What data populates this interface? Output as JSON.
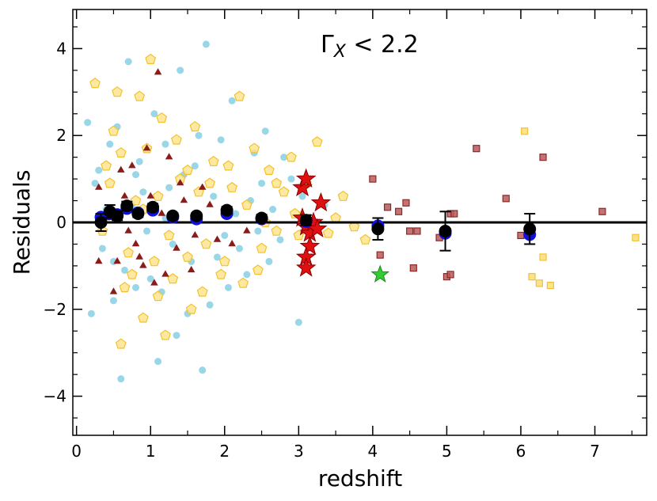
{
  "chart_data": {
    "type": "scatter",
    "title": "",
    "annotation": {
      "base": "Γ",
      "sub": "X",
      "rest": " < 2.2"
    },
    "xlabel": "redshift",
    "ylabel": "Residuals",
    "xlim": [
      -0.05,
      7.7
    ],
    "ylim": [
      -4.9,
      4.9
    ],
    "xticks": [
      0,
      1,
      2,
      3,
      4,
      5,
      6,
      7
    ],
    "yticks": [
      -4,
      -2,
      0,
      2,
      4
    ],
    "ytick_labels": [
      "−4",
      "−2",
      "0",
      "2",
      "4"
    ],
    "reference_line_y": 0,
    "colors": {
      "cyan": "#87cfe4",
      "gold_fill": "#ffe38a",
      "gold_edge": "#f2c12e",
      "darkred": "#8b1a1a",
      "square_fill": "#b85a5a",
      "square_edge": "#8b2a2a",
      "red_star": "#e01010",
      "green_star": "#33cc33",
      "binned_blue": "#1010e0",
      "binned_black": "#000000"
    },
    "series": {
      "cyan_points": [
        [
          0.15,
          2.3
        ],
        [
          0.3,
          1.2
        ],
        [
          0.5,
          -1.8
        ],
        [
          0.7,
          3.7
        ],
        [
          0.8,
          -1.5
        ],
        [
          1.2,
          1.8
        ],
        [
          1.4,
          3.5
        ],
        [
          1.5,
          -2.1
        ],
        [
          1.6,
          1.3
        ],
        [
          1.75,
          4.1
        ],
        [
          1.9,
          -0.8
        ],
        [
          2.1,
          2.8
        ],
        [
          2.3,
          -1.2
        ],
        [
          2.5,
          0.9
        ],
        [
          2.8,
          1.5
        ],
        [
          3.0,
          -2.3
        ],
        [
          1.1,
          -3.2
        ],
        [
          0.6,
          -3.6
        ],
        [
          0.4,
          0.3
        ],
        [
          0.9,
          0.7
        ],
        [
          1.3,
          -0.5
        ],
        [
          1.7,
          -3.4
        ],
        [
          2.0,
          -0.3
        ],
        [
          2.4,
          1.6
        ],
        [
          2.6,
          -0.9
        ],
        [
          0.2,
          -2.1
        ],
        [
          0.35,
          -0.6
        ],
        [
          0.45,
          1.8
        ],
        [
          0.55,
          2.2
        ],
        [
          0.65,
          -1.1
        ],
        [
          0.75,
          0.4
        ],
        [
          0.85,
          1.4
        ],
        [
          0.95,
          -0.2
        ],
        [
          1.05,
          2.5
        ],
        [
          1.15,
          -1.6
        ],
        [
          1.25,
          0.8
        ],
        [
          1.35,
          -2.6
        ],
        [
          1.45,
          1.1
        ],
        [
          1.55,
          -0.9
        ],
        [
          1.65,
          2.0
        ],
        [
          1.8,
          -1.9
        ],
        [
          1.85,
          0.6
        ],
        [
          1.95,
          1.9
        ],
        [
          2.05,
          -1.5
        ],
        [
          2.15,
          0.2
        ],
        [
          2.2,
          -0.6
        ],
        [
          2.35,
          0.5
        ],
        [
          2.45,
          -0.2
        ],
        [
          2.55,
          2.1
        ],
        [
          2.65,
          0.3
        ],
        [
          2.75,
          -0.4
        ],
        [
          2.9,
          1.0
        ],
        [
          3.05,
          0.6
        ],
        [
          3.2,
          -0.2
        ],
        [
          3.35,
          0.4
        ],
        [
          0.25,
          0.9
        ],
        [
          0.5,
          -0.9
        ],
        [
          0.8,
          1.1
        ],
        [
          1.0,
          -1.3
        ],
        [
          1.2,
          0.1
        ]
      ],
      "gold_pentagons": [
        [
          0.25,
          3.2
        ],
        [
          0.55,
          3.0
        ],
        [
          0.85,
          2.9
        ],
        [
          1.0,
          3.75
        ],
        [
          0.6,
          -2.8
        ],
        [
          0.9,
          -2.2
        ],
        [
          1.2,
          -2.6
        ],
        [
          1.5,
          1.2
        ],
        [
          1.7,
          -1.6
        ],
        [
          2.2,
          2.9
        ],
        [
          2.6,
          1.2
        ],
        [
          2.9,
          1.5
        ],
        [
          3.25,
          1.85
        ],
        [
          3.6,
          0.6
        ],
        [
          3.9,
          -0.4
        ],
        [
          0.4,
          1.3
        ],
        [
          0.7,
          -0.7
        ],
        [
          1.1,
          0.6
        ],
        [
          1.3,
          -1.3
        ],
        [
          1.6,
          2.2
        ],
        [
          1.8,
          0.9
        ],
        [
          2.0,
          -0.9
        ],
        [
          2.3,
          0.4
        ],
        [
          2.5,
          -0.6
        ],
        [
          2.7,
          -0.2
        ],
        [
          3.1,
          0.9
        ],
        [
          3.4,
          -0.25
        ],
        [
          0.5,
          2.1
        ],
        [
          0.65,
          -1.5
        ],
        [
          0.8,
          0.5
        ],
        [
          0.95,
          1.7
        ],
        [
          1.05,
          -0.9
        ],
        [
          1.15,
          2.4
        ],
        [
          1.25,
          -0.3
        ],
        [
          1.4,
          1.0
        ],
        [
          1.55,
          -2.0
        ],
        [
          1.65,
          0.7
        ],
        [
          1.75,
          -0.5
        ],
        [
          1.85,
          1.4
        ],
        [
          1.95,
          -1.2
        ],
        [
          2.1,
          0.8
        ],
        [
          2.25,
          -1.4
        ],
        [
          2.4,
          1.7
        ],
        [
          2.55,
          0.0
        ],
        [
          2.8,
          0.7
        ],
        [
          3.0,
          -0.3
        ],
        [
          3.5,
          0.1
        ],
        [
          3.75,
          -0.1
        ],
        [
          0.35,
          -0.2
        ],
        [
          0.45,
          0.9
        ],
        [
          0.6,
          1.6
        ],
        [
          0.75,
          -1.2
        ],
        [
          0.9,
          0.3
        ],
        [
          1.1,
          -1.7
        ],
        [
          1.35,
          1.9
        ],
        [
          1.5,
          -0.8
        ],
        [
          2.05,
          1.3
        ],
        [
          2.45,
          -1.1
        ],
        [
          2.7,
          0.9
        ],
        [
          2.95,
          0.2
        ]
      ],
      "darkred_triangles": [
        [
          1.1,
          3.45
        ],
        [
          0.3,
          0.8
        ],
        [
          0.3,
          -0.9
        ],
        [
          0.5,
          -1.6
        ],
        [
          0.6,
          1.2
        ],
        [
          0.8,
          -0.5
        ],
        [
          1.0,
          0.6
        ],
        [
          1.2,
          -1.2
        ],
        [
          1.4,
          0.9
        ],
        [
          1.6,
          -0.3
        ],
        [
          1.8,
          0.4
        ],
        [
          2.1,
          -0.5
        ],
        [
          0.9,
          -1.0
        ],
        [
          0.7,
          -0.2
        ],
        [
          0.4,
          0.1
        ],
        [
          0.55,
          -0.9
        ],
        [
          0.65,
          0.6
        ],
        [
          0.75,
          1.3
        ],
        [
          0.85,
          -0.8
        ],
        [
          0.95,
          1.7
        ],
        [
          1.05,
          -1.4
        ],
        [
          1.15,
          0.2
        ],
        [
          1.25,
          1.5
        ],
        [
          1.35,
          -0.6
        ],
        [
          1.45,
          0.5
        ],
        [
          1.55,
          -1.1
        ],
        [
          1.7,
          0.8
        ],
        [
          1.9,
          -0.4
        ],
        [
          2.0,
          0.2
        ],
        [
          2.3,
          -0.2
        ]
      ],
      "squares": [
        [
          4.0,
          1.0
        ],
        [
          4.1,
          -0.75
        ],
        [
          4.2,
          0.35
        ],
        [
          4.35,
          0.25
        ],
        [
          4.45,
          0.45
        ],
        [
          4.5,
          -0.2
        ],
        [
          4.55,
          -1.05
        ],
        [
          4.6,
          -0.2
        ],
        [
          4.9,
          -0.35
        ],
        [
          5.0,
          -1.25
        ],
        [
          5.05,
          -1.2
        ],
        [
          5.05,
          0.2
        ],
        [
          5.1,
          0.2
        ],
        [
          5.4,
          1.7
        ],
        [
          5.8,
          0.55
        ],
        [
          6.0,
          -0.3
        ],
        [
          6.3,
          1.5
        ],
        [
          7.1,
          0.25
        ]
      ],
      "gold_squares": [
        [
          6.05,
          2.1
        ],
        [
          6.15,
          -1.25
        ],
        [
          6.25,
          -1.4
        ],
        [
          6.3,
          -0.8
        ],
        [
          6.4,
          -1.45
        ],
        [
          7.55,
          -0.35
        ]
      ],
      "red_stars": [
        [
          3.05,
          0.8
        ],
        [
          3.1,
          1.0
        ],
        [
          3.3,
          0.45
        ],
        [
          3.05,
          0.1
        ],
        [
          3.1,
          -0.1
        ],
        [
          3.15,
          -0.25
        ],
        [
          3.2,
          0.0
        ],
        [
          3.25,
          -0.15
        ],
        [
          3.15,
          -0.55
        ],
        [
          3.1,
          -0.8
        ],
        [
          3.1,
          -1.05
        ]
      ],
      "green_stars": [
        [
          4.1,
          -1.2
        ]
      ],
      "binned_blue": [
        [
          0.33,
          0.12
        ],
        [
          0.45,
          0.2
        ],
        [
          0.55,
          0.18
        ],
        [
          0.68,
          0.32
        ],
        [
          0.83,
          0.22
        ],
        [
          1.03,
          0.28
        ],
        [
          1.3,
          0.12
        ],
        [
          1.62,
          0.08
        ],
        [
          2.03,
          0.2
        ],
        [
          2.5,
          0.08
        ],
        [
          3.1,
          0.02
        ],
        [
          4.07,
          -0.08
        ],
        [
          4.98,
          -0.25
        ],
        [
          6.12,
          -0.28
        ]
      ],
      "binned_black": [
        {
          "x": 0.33,
          "y": 0.0,
          "err": 0.2
        },
        {
          "x": 0.45,
          "y": 0.25,
          "err": 0.15
        },
        {
          "x": 0.55,
          "y": 0.15,
          "err": 0.1
        },
        {
          "x": 0.68,
          "y": 0.38,
          "err": 0.1
        },
        {
          "x": 0.83,
          "y": 0.2,
          "err": 0.08
        },
        {
          "x": 1.03,
          "y": 0.35,
          "err": 0.08
        },
        {
          "x": 1.3,
          "y": 0.15,
          "err": 0.06
        },
        {
          "x": 1.62,
          "y": 0.15,
          "err": 0.06
        },
        {
          "x": 2.03,
          "y": 0.28,
          "err": 0.08
        },
        {
          "x": 2.5,
          "y": 0.1,
          "err": 0.08
        },
        {
          "x": 3.1,
          "y": 0.05,
          "err": 0.12
        },
        {
          "x": 4.07,
          "y": -0.15,
          "err": 0.25
        },
        {
          "x": 4.98,
          "y": -0.2,
          "err": 0.45
        },
        {
          "x": 6.12,
          "y": -0.15,
          "err": 0.35
        }
      ]
    }
  }
}
